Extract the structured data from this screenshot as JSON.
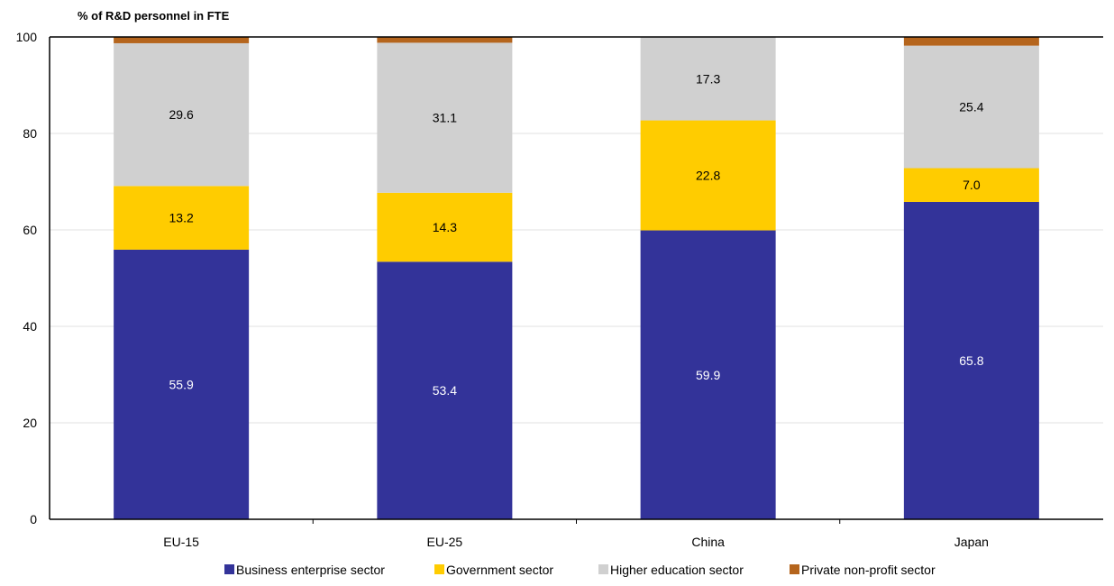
{
  "chart_data": {
    "type": "bar",
    "stacked": true,
    "ylabel": "% of R&D personnel in FTE",
    "ylim": [
      0,
      100
    ],
    "yticks": [
      0,
      20,
      40,
      60,
      80,
      100
    ],
    "grid": true,
    "legend_position": "bottom",
    "categories": [
      "EU-15",
      "EU-25",
      "China",
      "Japan"
    ],
    "series": [
      {
        "name": "Business enterprise sector",
        "color": "#333399",
        "label_color": "#ffffff",
        "values": [
          55.9,
          53.4,
          59.9,
          65.8
        ],
        "labels": [
          "55.9",
          "53.4",
          "59.9",
          "65.8"
        ]
      },
      {
        "name": "Government sector",
        "color": "#ffcc00",
        "label_color": "#000000",
        "values": [
          13.2,
          14.3,
          22.8,
          7.0
        ],
        "labels": [
          "13.2",
          "14.3",
          "22.8",
          "7.0"
        ]
      },
      {
        "name": "Higher education sector",
        "color": "#d0d0d0",
        "label_color": "#000000",
        "values": [
          29.6,
          31.1,
          17.3,
          25.4
        ],
        "labels": [
          "29.6",
          "31.1",
          "17.3",
          "25.4"
        ]
      },
      {
        "name": "Private non-profit sector",
        "color": "#b5651d",
        "label_color": "#000000",
        "values": [
          1.3,
          1.2,
          0.0,
          1.8
        ],
        "labels": [
          "",
          "",
          "",
          ""
        ]
      }
    ]
  }
}
